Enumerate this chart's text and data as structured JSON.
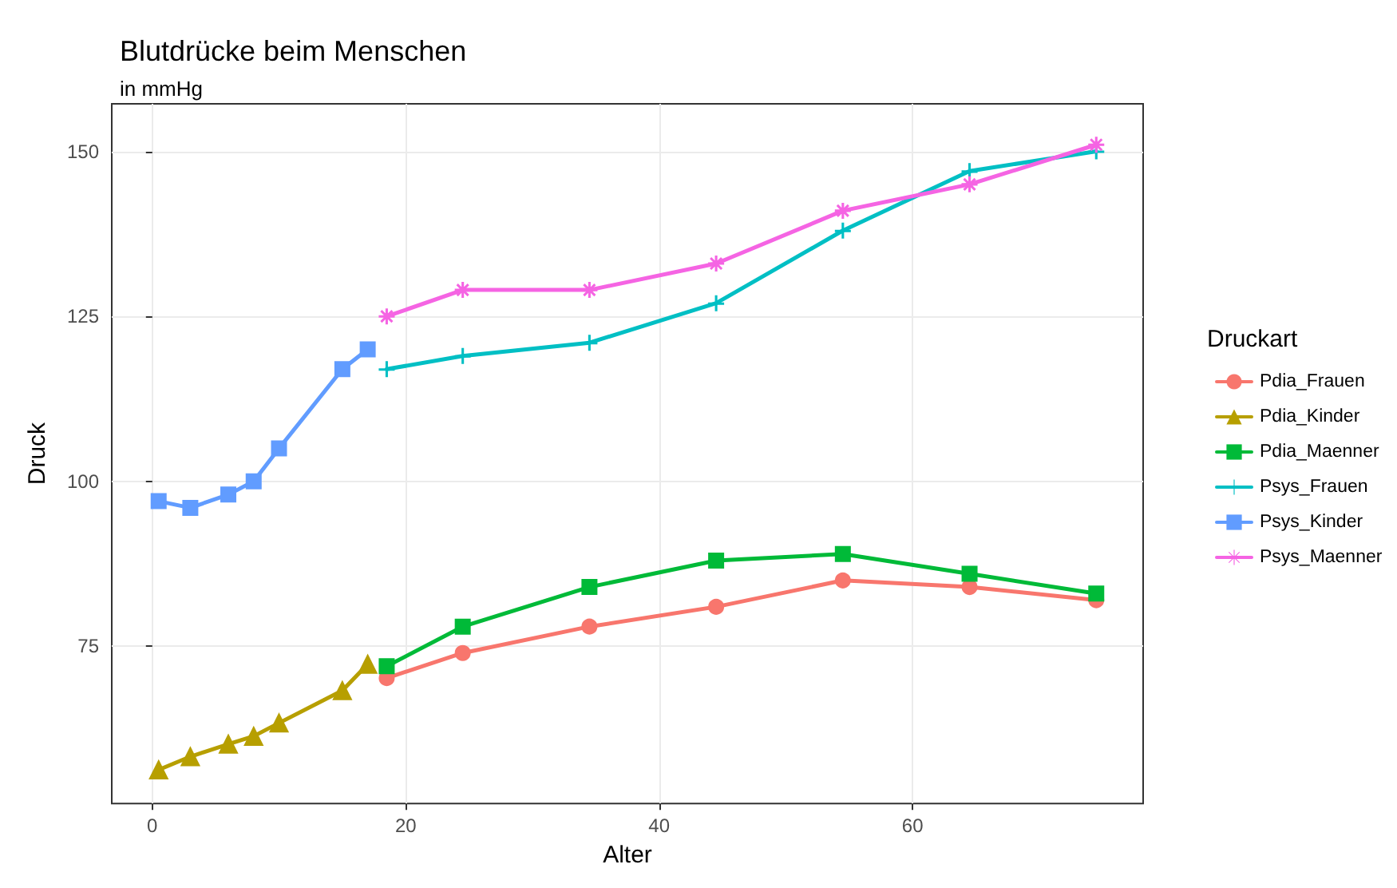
{
  "chart_data": {
    "type": "line",
    "title": "Blutdrücke beim Menschen",
    "subtitle": "in mmHg",
    "xlabel": "Alter",
    "ylabel": "Druck",
    "legend_title": "Druckart",
    "legend": "right",
    "grid": true,
    "xlim": [
      -3.2,
      78.2
    ],
    "xticks": [
      0,
      20,
      40,
      60
    ],
    "ylim": [
      51.2,
      157.2
    ],
    "yticks": [
      75,
      100,
      125,
      150
    ],
    "series": [
      {
        "name": "Pdia_Frauen",
        "color": "#f8766d",
        "marker": "circle",
        "x": [
          18.5,
          24.5,
          34.5,
          44.5,
          54.5,
          64.5,
          74.5
        ],
        "values": [
          70.2,
          74,
          78,
          81,
          85,
          84,
          82
        ]
      },
      {
        "name": "Pdia_Kinder",
        "color": "#b79f00",
        "marker": "triangle",
        "x": [
          0.5,
          3,
          6,
          8,
          10,
          15,
          17
        ],
        "values": [
          56.3,
          58.3,
          60.2,
          61.4,
          63.4,
          68.3,
          72.3
        ]
      },
      {
        "name": "Pdia_Maenner",
        "color": "#00ba38",
        "marker": "square",
        "x": [
          18.5,
          24.5,
          34.5,
          44.5,
          54.5,
          64.5,
          74.5
        ],
        "values": [
          72,
          78,
          84,
          88,
          89,
          86,
          83
        ]
      },
      {
        "name": "Psys_Frauen",
        "color": "#00bfc4",
        "marker": "cross",
        "x": [
          18.5,
          24.5,
          34.5,
          44.5,
          54.5,
          64.5,
          74.5
        ],
        "values": [
          117,
          119,
          121,
          127,
          138,
          147,
          150
        ]
      },
      {
        "name": "Psys_Kinder",
        "color": "#619cff",
        "marker": "square",
        "x": [
          0.5,
          3,
          6,
          8,
          10,
          15,
          17
        ],
        "values": [
          97,
          96,
          98,
          100,
          105,
          117,
          120
        ]
      },
      {
        "name": "Psys_Maenner",
        "color": "#f564e3",
        "marker": "star",
        "x": [
          18.5,
          24.5,
          34.5,
          44.5,
          54.5,
          64.5,
          74.5
        ],
        "values": [
          125,
          129,
          129,
          133,
          141,
          145,
          151
        ]
      }
    ]
  }
}
